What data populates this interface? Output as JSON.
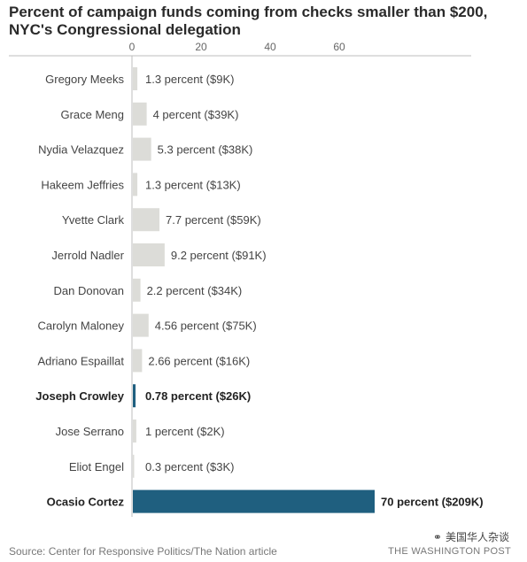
{
  "header": {
    "title": "Percent of campaign funds coming from checks smaller than $200, NYC's Congressional delegation"
  },
  "footer": {
    "source": "Source: Center for Responsive Politics/The Nation article",
    "publisher": "THE WASHINGTON POST",
    "watermark": "美国华人杂谈"
  },
  "colors": {
    "bar": "#dcdcd8",
    "highlight": "#1f5f7f",
    "axis": "#bdbdbd",
    "text": "#333333"
  },
  "chart_data": {
    "type": "bar",
    "orientation": "horizontal",
    "title": "Percent of campaign funds coming from checks smaller than $200, NYC's Congressional delegation",
    "xlim": [
      0,
      75
    ],
    "xticks": [
      0,
      20,
      40,
      60
    ],
    "categories": [
      "Gregory Meeks",
      "Grace Meng",
      "Nydia Velazquez",
      "Hakeem Jeffries",
      "Yvette Clark",
      "Jerrold Nadler",
      "Dan Donovan",
      "Carolyn Maloney",
      "Adriano Espaillat",
      "Joseph Crowley",
      "Jose Serrano",
      "Eliot Engel",
      "Ocasio Cortez"
    ],
    "values": [
      1.3,
      4,
      5.3,
      1.3,
      7.7,
      9.2,
      2.2,
      4.56,
      2.66,
      0.78,
      1,
      0.3,
      70
    ],
    "labels": [
      "1.3 percent ($9K)",
      "4 percent ($39K)",
      "5.3 percent ($38K)",
      "1.3 percent ($13K)",
      "7.7 percent ($59K)",
      "9.2 percent ($91K)",
      "2.2 percent ($34K)",
      "4.56 percent ($75K)",
      "2.66 percent ($16K)",
      "0.78 percent ($26K)",
      "1 percent ($2K)",
      "0.3 percent ($3K)",
      "70 percent ($209K)"
    ],
    "highlighted": [
      "Joseph Crowley",
      "Ocasio Cortez"
    ],
    "grid": false
  }
}
